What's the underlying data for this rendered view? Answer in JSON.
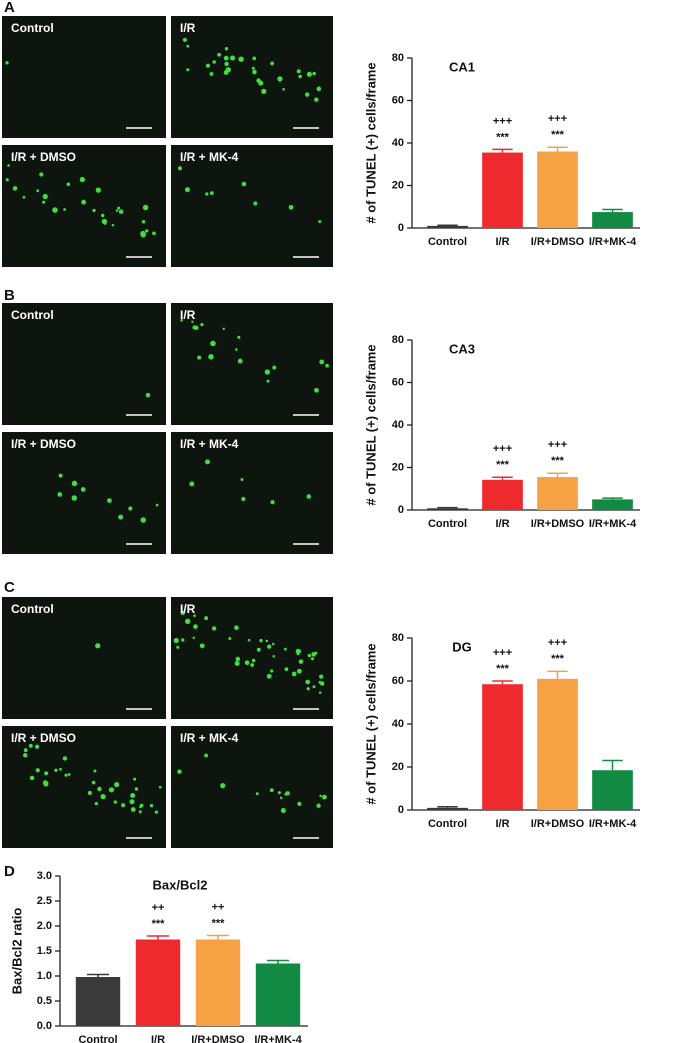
{
  "panels": [
    {
      "letter": "A",
      "image_labels": [
        "Control",
        "I/R",
        "I/R + DMSO",
        "I/R + MK-4"
      ]
    },
    {
      "letter": "B",
      "image_labels": [
        "Control",
        "I/R",
        "I/R + DMSO",
        "I/R + MK-4"
      ]
    },
    {
      "letter": "C",
      "image_labels": [
        "Control",
        "I/R",
        "I/R + DMSO",
        "I/R + MK-4"
      ]
    },
    {
      "letter": "D"
    }
  ],
  "chart_data": [
    {
      "type": "bar",
      "title": "CA1",
      "y_label": "# of TUNEL (+) cells/frame",
      "categories": [
        "Control",
        "I/R",
        "I/R+DMSO",
        "I/R+MK-4"
      ],
      "values": [
        1,
        35.5,
        36,
        7.5
      ],
      "errors": [
        0.3,
        1.5,
        2,
        1.2
      ],
      "colors": [
        "#3a3a3a",
        "#ee2a2e",
        "#f6a244",
        "#138a43"
      ],
      "stars": [
        null,
        "***",
        "***",
        null
      ],
      "plus": [
        null,
        "+++",
        "+++",
        null
      ],
      "ylim": [
        0,
        80
      ],
      "yticks": [
        0,
        20,
        40,
        60,
        80
      ]
    },
    {
      "type": "bar",
      "title": "CA3",
      "y_label": "# of TUNEL (+) cells/frame",
      "categories": [
        "Control",
        "I/R",
        "I/R+DMSO",
        "I/R+MK-4"
      ],
      "values": [
        0.8,
        14.2,
        15.5,
        5
      ],
      "errors": [
        0.3,
        1.2,
        1.8,
        0.6
      ],
      "colors": [
        "#3a3a3a",
        "#ee2a2e",
        "#f6a244",
        "#138a43"
      ],
      "stars": [
        null,
        "***",
        "***",
        null
      ],
      "plus": [
        null,
        "+++",
        "+++",
        null
      ],
      "ylim": [
        0,
        80
      ],
      "yticks": [
        0,
        20,
        40,
        60,
        80
      ]
    },
    {
      "type": "bar",
      "title": "DG",
      "y_label": "# of TUNEL (+) cells/frame",
      "categories": [
        "Control",
        "I/R",
        "I/R+DMSO",
        "I/R+MK-4"
      ],
      "values": [
        1,
        58.5,
        61,
        18.5
      ],
      "errors": [
        0.5,
        1.5,
        3.5,
        4.5
      ],
      "colors": [
        "#3a3a3a",
        "#ee2a2e",
        "#f6a244",
        "#138a43"
      ],
      "stars": [
        null,
        "***",
        "***",
        null
      ],
      "plus": [
        null,
        "+++",
        "+++",
        null
      ],
      "ylim": [
        0,
        80
      ],
      "yticks": [
        0,
        20,
        40,
        60,
        80
      ]
    },
    {
      "type": "bar",
      "title": "Bax/Bcl2",
      "y_label": "Bax/Bcl2 ratio",
      "categories": [
        "Control",
        "I/R",
        "I/R+DMSO",
        "I/R+MK-4"
      ],
      "values": [
        0.98,
        1.73,
        1.73,
        1.25
      ],
      "errors": [
        0.05,
        0.07,
        0.08,
        0.06
      ],
      "colors": [
        "#3a3a3a",
        "#ee2a2e",
        "#f6a244",
        "#138a43"
      ],
      "stars": [
        null,
        "***",
        "***",
        null
      ],
      "plus": [
        null,
        "++",
        "++",
        null
      ],
      "ylim": [
        0,
        3
      ],
      "yticks": [
        {
          "value": 0,
          "label": "0.0"
        },
        {
          "value": 0.5,
          "label": "0.5"
        },
        {
          "value": 1,
          "label": "1.0"
        },
        {
          "value": 1.5,
          "label": "1.5"
        },
        {
          "value": 2,
          "label": "2.0"
        },
        {
          "value": 2.5,
          "label": "2.5"
        },
        {
          "value": 3,
          "label": "3.0"
        }
      ]
    }
  ]
}
